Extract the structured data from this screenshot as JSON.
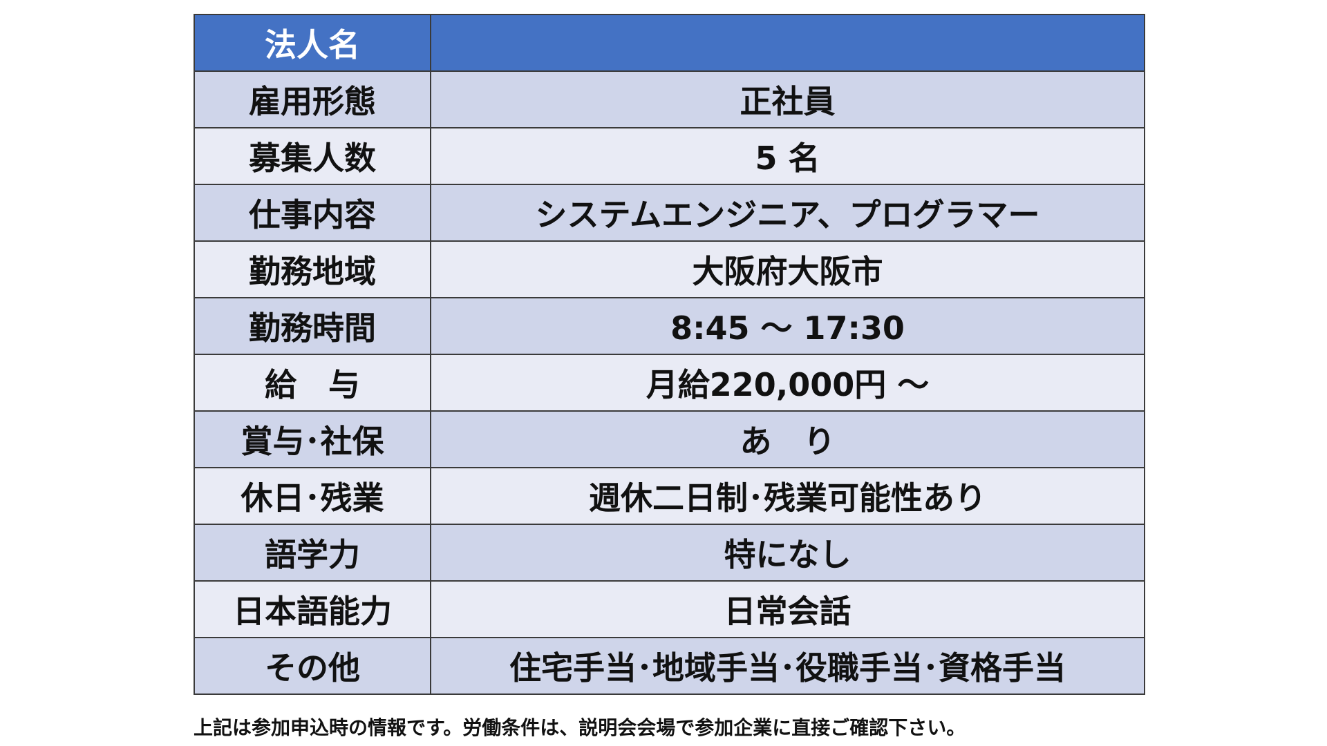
{
  "colors": {
    "header": "#4472C4",
    "row_dark": "#CFD5EA",
    "row_light": "#E9EBF5"
  },
  "header": {
    "label": "法人名",
    "value": ""
  },
  "rows": [
    {
      "label": "雇用形態",
      "value": "正社員"
    },
    {
      "label": "募集人数",
      "value": "5 名"
    },
    {
      "label": "仕事内容",
      "value": "システムエンジニア、プログラマー"
    },
    {
      "label": "勤務地域",
      "value": "大阪府大阪市"
    },
    {
      "label": "勤務時間",
      "value": "8:45 ～ 17:30"
    },
    {
      "label": "給　与",
      "value": "月給220,000円 ～"
    },
    {
      "label": "賞与･社保",
      "value": "あ　り"
    },
    {
      "label": "休日･残業",
      "value": "週休二日制･残業可能性あり"
    },
    {
      "label": "語学力",
      "value": "特になし"
    },
    {
      "label": "日本語能力",
      "value": "日常会話"
    },
    {
      "label": "その他",
      "value": "住宅手当･地域手当･役職手当･資格手当"
    }
  ],
  "footnote": "上記は参加申込時の情報です。労働条件は、説明会会場で参加企業に直接ご確認下さい。"
}
